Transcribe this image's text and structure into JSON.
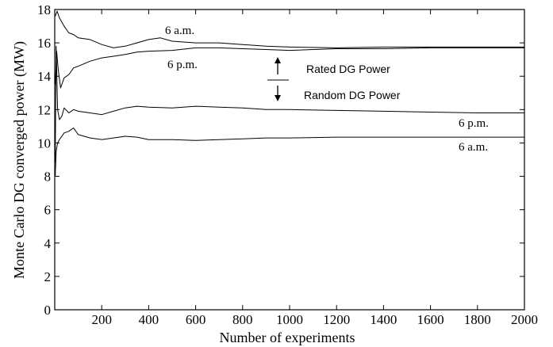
{
  "chart_data": {
    "type": "line",
    "title": "",
    "xlabel": "Number of experiments",
    "ylabel": "Monte Carlo DG converged power (MW)",
    "xlim": [
      0,
      2000
    ],
    "ylim": [
      0,
      18
    ],
    "xticks": [
      200,
      400,
      600,
      800,
      1000,
      1200,
      1400,
      1600,
      1800,
      2000
    ],
    "yticks": [
      0,
      2,
      4,
      6,
      8,
      10,
      12,
      14,
      16,
      18
    ],
    "grid": false,
    "legend": "none",
    "line_color": "#000000",
    "annotations": {
      "rated_am": "6 a.m.",
      "rated_pm": "6 p.m.",
      "random_pm": "6 p.m.",
      "random_am": "6 a.m.",
      "rated_label": "Rated DG Power",
      "random_label": "Random DG Power"
    },
    "series": [
      {
        "id": "rated-6am",
        "x": [
          2,
          10,
          20,
          40,
          60,
          80,
          100,
          150,
          200,
          250,
          300,
          350,
          400,
          450,
          500,
          600,
          700,
          800,
          900,
          1000,
          1200,
          1400,
          1600,
          1800,
          2000
        ],
        "y": [
          17.6,
          17.9,
          17.5,
          17.0,
          16.6,
          16.5,
          16.3,
          16.2,
          15.9,
          15.7,
          15.8,
          16.0,
          16.2,
          16.3,
          16.1,
          16.0,
          16.0,
          15.9,
          15.8,
          15.75,
          15.7,
          15.75,
          15.75,
          15.75,
          15.75
        ]
      },
      {
        "id": "rated-6pm",
        "x": [
          2,
          8,
          15,
          25,
          40,
          60,
          80,
          100,
          150,
          200,
          250,
          300,
          350,
          400,
          500,
          600,
          700,
          800,
          900,
          1000,
          1200,
          1400,
          1600,
          1800,
          2000
        ],
        "y": [
          13.5,
          15.5,
          14.4,
          13.3,
          13.9,
          14.1,
          14.5,
          14.6,
          14.9,
          15.1,
          15.2,
          15.3,
          15.45,
          15.5,
          15.55,
          15.7,
          15.7,
          15.65,
          15.6,
          15.55,
          15.65,
          15.65,
          15.7,
          15.7,
          15.7
        ]
      },
      {
        "id": "random-6pm",
        "x": [
          2,
          6,
          12,
          20,
          30,
          40,
          60,
          80,
          100,
          150,
          200,
          250,
          300,
          350,
          400,
          500,
          600,
          700,
          800,
          900,
          1000,
          1200,
          1400,
          1600,
          1800,
          2000
        ],
        "y": [
          8.8,
          15.8,
          12.0,
          11.4,
          11.6,
          12.1,
          11.8,
          12.0,
          11.9,
          11.8,
          11.7,
          11.9,
          12.1,
          12.2,
          12.15,
          12.1,
          12.2,
          12.15,
          12.1,
          12.0,
          12.0,
          11.95,
          11.9,
          11.85,
          11.8,
          11.8
        ]
      },
      {
        "id": "random-6am",
        "x": [
          2,
          6,
          12,
          20,
          30,
          40,
          60,
          80,
          100,
          150,
          200,
          250,
          300,
          350,
          400,
          500,
          600,
          700,
          800,
          900,
          1000,
          1200,
          1400,
          1600,
          1800,
          2000
        ],
        "y": [
          8.0,
          9.5,
          10.0,
          10.2,
          10.4,
          10.6,
          10.7,
          10.9,
          10.5,
          10.3,
          10.2,
          10.3,
          10.4,
          10.35,
          10.2,
          10.2,
          10.15,
          10.2,
          10.25,
          10.3,
          10.3,
          10.35,
          10.35,
          10.35,
          10.35,
          10.35
        ]
      }
    ]
  }
}
